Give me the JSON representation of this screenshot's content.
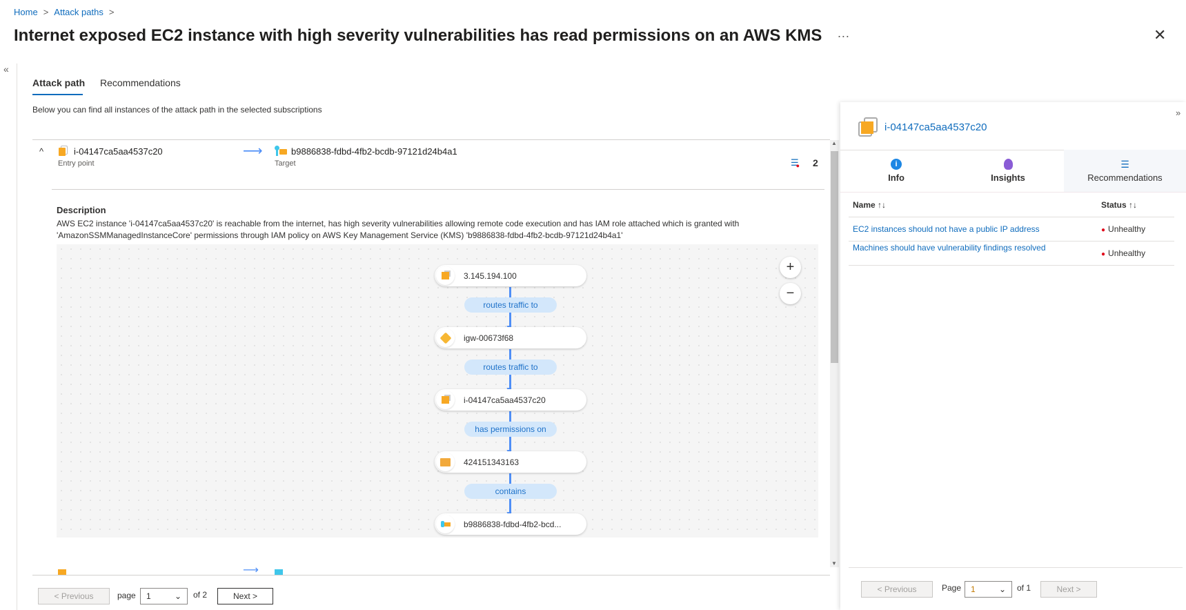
{
  "breadcrumb": [
    {
      "label": "Home"
    },
    {
      "label": "Attack paths"
    }
  ],
  "title": "Internet exposed EC2 instance with high severity vulnerabilities has read permissions on an AWS KMS",
  "more_label": "···",
  "tabs": [
    {
      "label": "Attack path",
      "active": true
    },
    {
      "label": "Recommendations",
      "active": false
    }
  ],
  "subtitle": "Below you can find all instances of the attack path in the selected subscriptions",
  "path_row": {
    "entry": "i-04147ca5aa4537c20",
    "entry_label": "Entry point",
    "target": "b9886838-fdbd-4fb2-bcdb-97121d24b4a1",
    "target_label": "Target",
    "recommendation_count": "2",
    "description_heading": "Description",
    "description": "AWS EC2 instance 'i-04147ca5aa4537c20' is reachable from the internet, has high severity vulnerabilities allowing remote code execution and has IAM role attached which is granted with 'AmazonSSMManagedInstanceCore' permissions through IAM policy on AWS Key Management Service (KMS) 'b9886838-fdbd-4fb2-bcdb-97121d24b4a1'"
  },
  "graph": {
    "nodes": [
      {
        "label": "3.145.194.100",
        "icon": "ec2-instance-icon"
      },
      {
        "label": "igw-00673f68",
        "icon": "internet-gateway-icon"
      },
      {
        "label": "i-04147ca5aa4537c20",
        "icon": "ec2-instance-icon"
      },
      {
        "label": "424151343163",
        "icon": "folder-account-icon"
      },
      {
        "label": "b9886838-fdbd-4fb2-bcd...",
        "icon": "kms-key-icon"
      }
    ],
    "edges": [
      {
        "label": "routes traffic to"
      },
      {
        "label": "routes traffic to"
      },
      {
        "label": "has permissions on"
      },
      {
        "label": "contains"
      }
    ],
    "zoom_in": "+",
    "zoom_out": "−"
  },
  "pagination": {
    "previous": "< Previous",
    "page_label": "page",
    "page": "1",
    "of": "of 2",
    "next": "Next >"
  },
  "panel": {
    "resource": "i-04147ca5aa4537c20",
    "tabs": [
      {
        "label": "Info"
      },
      {
        "label": "Insights"
      },
      {
        "label": "Recommendations",
        "active": true
      }
    ],
    "columns": {
      "name": "Name ↑↓",
      "status": "Status ↑↓"
    },
    "rows": [
      {
        "name": "EC2 instances should not have a public IP address",
        "status": "Unhealthy"
      },
      {
        "name": "Machines should have vulnerability findings resolved",
        "status": "Unhealthy"
      }
    ],
    "pagination": {
      "previous": "< Previous",
      "page_label": "Page",
      "page": "1",
      "of": "of 1",
      "next": "Next >"
    }
  },
  "colors": {
    "accent": "#0f6cbd",
    "unhealthy": "#e00b1c",
    "edge": "#4f8ff7"
  }
}
